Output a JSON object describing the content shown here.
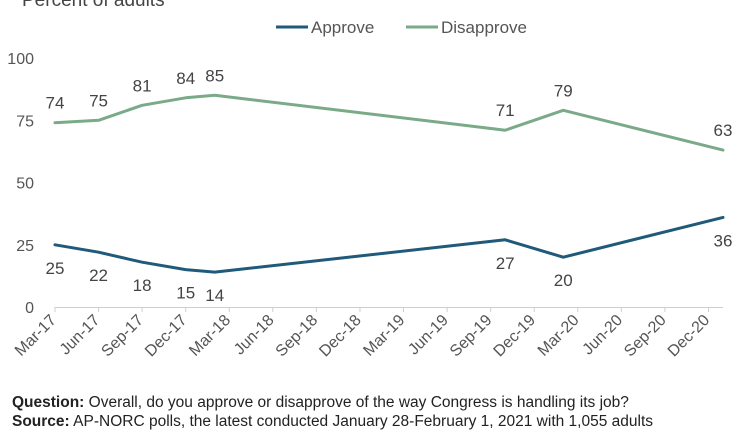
{
  "chart_data": {
    "type": "line",
    "subtitle": "Percent of adults",
    "ylim": [
      0,
      100
    ],
    "yticks": [
      0,
      25,
      50,
      75,
      100
    ],
    "xticks": [
      "Mar-17",
      "Jun-17",
      "Sep-17",
      "Dec-17",
      "Mar-18",
      "Jun-18",
      "Sep-18",
      "Dec-18",
      "Mar-19",
      "Jun-19",
      "Sep-19",
      "Dec-19",
      "Mar-20",
      "Jun-20",
      "Sep-20",
      "Dec-20"
    ],
    "legend_position": "top",
    "grid": false,
    "series": [
      {
        "name": "Approve",
        "color": "#1f5a7a",
        "points": [
          {
            "x": "2017-03",
            "y": 25
          },
          {
            "x": "2017-06",
            "y": 22
          },
          {
            "x": "2017-09",
            "y": 18
          },
          {
            "x": "2017-12",
            "y": 15
          },
          {
            "x": "2018-02",
            "y": 14
          },
          {
            "x": "2019-10",
            "y": 27
          },
          {
            "x": "2020-02",
            "y": 20
          },
          {
            "x": "2021-01",
            "y": 36
          }
        ]
      },
      {
        "name": "Disapprove",
        "color": "#7aaa88",
        "points": [
          {
            "x": "2017-03",
            "y": 74
          },
          {
            "x": "2017-06",
            "y": 75
          },
          {
            "x": "2017-09",
            "y": 81
          },
          {
            "x": "2017-12",
            "y": 84
          },
          {
            "x": "2018-02",
            "y": 85
          },
          {
            "x": "2019-10",
            "y": 71
          },
          {
            "x": "2020-02",
            "y": 79
          },
          {
            "x": "2021-01",
            "y": 63
          }
        ]
      }
    ]
  },
  "footer": {
    "question_label": "Question:",
    "question_text": " Overall, do you approve or disapprove of the way Congress is handling its job?",
    "source_label": "Source:",
    "source_text": " AP-NORC polls, the latest conducted January 28-February 1, 2021 with 1,055 adults"
  }
}
